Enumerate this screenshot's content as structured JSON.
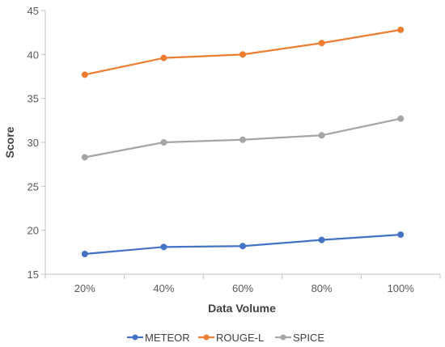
{
  "chart_data": {
    "type": "line",
    "title": "",
    "xlabel": "Data Volume",
    "ylabel": "Score",
    "categories": [
      "20%",
      "40%",
      "60%",
      "80%",
      "100%"
    ],
    "ylim": [
      15,
      45
    ],
    "yticks": [
      15,
      20,
      25,
      30,
      35,
      40,
      45
    ],
    "grid": false,
    "legend_position": "bottom",
    "series": [
      {
        "name": "METEOR",
        "color": "#4472C4",
        "values": [
          17.3,
          18.1,
          18.2,
          18.9,
          19.5
        ]
      },
      {
        "name": "ROUGE-L",
        "color": "#ED7D31",
        "values": [
          37.7,
          39.6,
          40.0,
          41.3,
          42.8
        ]
      },
      {
        "name": "SPICE",
        "color": "#A5A5A5",
        "values": [
          28.3,
          30.0,
          30.3,
          30.8,
          32.7
        ]
      }
    ]
  }
}
